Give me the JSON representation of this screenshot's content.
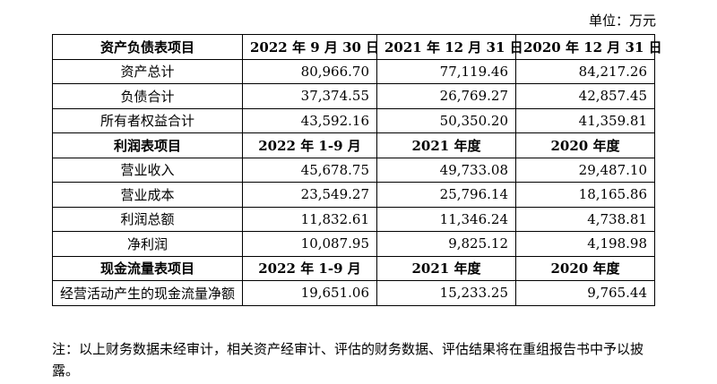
{
  "unit": "单位：万元",
  "table": {
    "sections": [
      {
        "header": [
          "资产负债表项目",
          "2022 年 9 月 30 日",
          "2021 年 12 月 31 日",
          "2020 年 12 月 31 日"
        ],
        "rows": [
          [
            "资产总计",
            "80,966.70",
            "77,119.46",
            "84,217.26"
          ],
          [
            "负债合计",
            "37,374.55",
            "26,769.27",
            "42,857.45"
          ],
          [
            "所有者权益合计",
            "43,592.16",
            "50,350.20",
            "41,359.81"
          ]
        ]
      },
      {
        "header": [
          "利润表项目",
          "2022 年 1-9 月",
          "2021 年度",
          "2020 年度"
        ],
        "rows": [
          [
            "营业收入",
            "45,678.75",
            "49,733.08",
            "29,487.10"
          ],
          [
            "营业成本",
            "23,549.27",
            "25,796.14",
            "18,165.86"
          ],
          [
            "利润总额",
            "11,832.61",
            "11,346.24",
            "4,738.81"
          ],
          [
            "净利润",
            "10,087.95",
            "9,825.12",
            "4,198.98"
          ]
        ]
      },
      {
        "header": [
          "现金流量表项目",
          "2022 年 1-9 月",
          "2021 年度",
          "2020 年度"
        ],
        "rows": [
          [
            "经营活动产生的现金流量净额",
            "19,651.06",
            "15,233.25",
            "9,765.44"
          ]
        ]
      }
    ]
  },
  "note": "注：以上财务数据未经审计，相关资产经审计、评估的财务数据、评估结果将在重组报告书中予以披露。"
}
